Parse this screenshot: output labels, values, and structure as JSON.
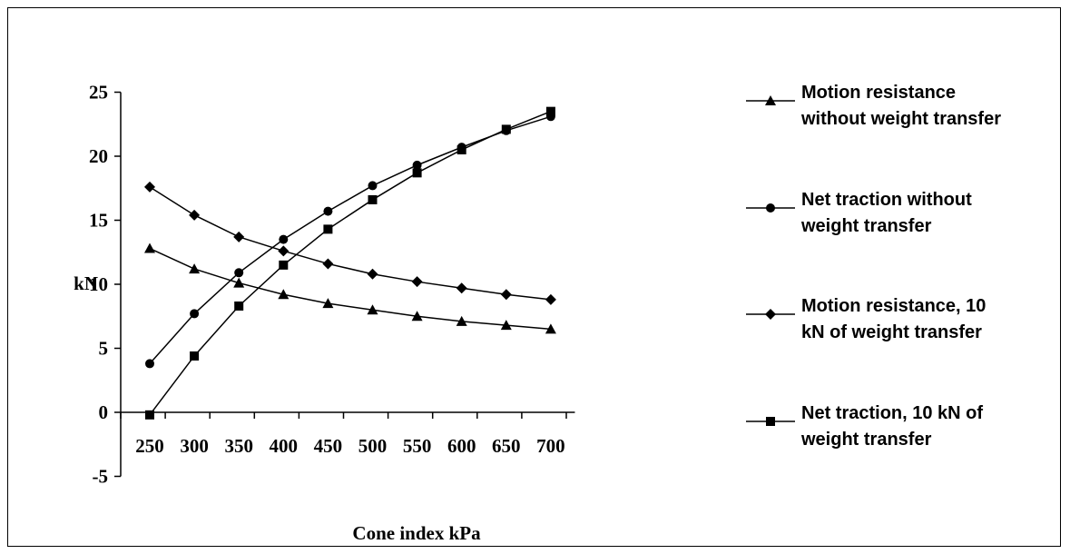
{
  "chart_data": {
    "type": "line",
    "title": "",
    "xlabel": "Cone index  kPa",
    "ylabel": "kN",
    "categories": [
      "250",
      "300",
      "350",
      "400",
      "450",
      "500",
      "550",
      "600",
      "650",
      "700"
    ],
    "ylim": [
      -5,
      25
    ],
    "yticks": [
      "25",
      "20",
      "15",
      "10",
      "5",
      "0",
      "-5"
    ],
    "ytick_values": [
      25,
      20,
      15,
      10,
      5,
      0,
      -5
    ],
    "grid": false,
    "legend_position": "right",
    "series": [
      {
        "name_lines": [
          "Motion resistance",
          "without weight transfer"
        ],
        "marker": "triangle",
        "values": [
          12.8,
          11.2,
          10.1,
          9.2,
          8.5,
          8.0,
          7.5,
          7.1,
          6.8,
          6.5
        ]
      },
      {
        "name_lines": [
          "Net traction without",
          "weight transfer"
        ],
        "marker": "circle",
        "values": [
          3.8,
          7.7,
          10.9,
          13.5,
          15.7,
          17.7,
          19.3,
          20.7,
          22.0,
          23.1
        ]
      },
      {
        "name_lines": [
          "Motion resistance, 10",
          "kN of  weight transfer"
        ],
        "marker": "diamond",
        "values": [
          17.6,
          15.4,
          13.7,
          12.6,
          11.6,
          10.8,
          10.2,
          9.7,
          9.2,
          8.8
        ]
      },
      {
        "name_lines": [
          "Net traction, 10 kN of",
          "weight transfer"
        ],
        "marker": "square",
        "values": [
          -0.2,
          4.4,
          8.3,
          11.5,
          14.3,
          16.6,
          18.7,
          20.5,
          22.1,
          23.5
        ]
      }
    ]
  }
}
